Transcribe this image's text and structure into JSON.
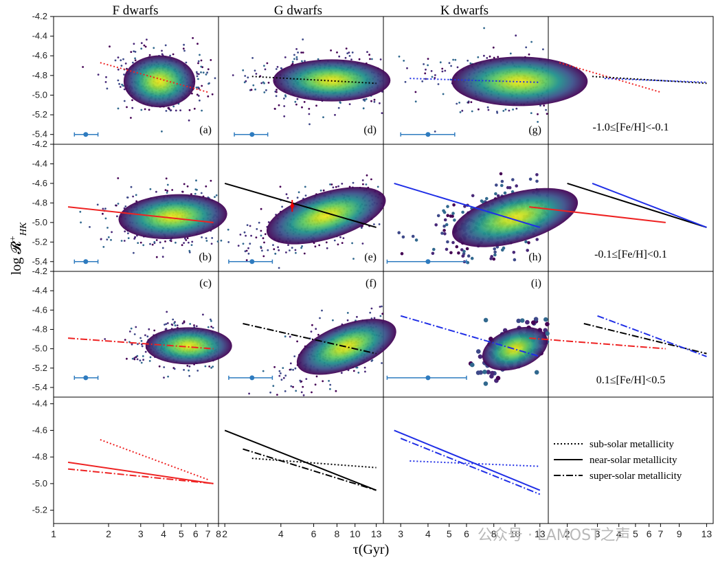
{
  "colors": {
    "F": "#ee2222",
    "G": "#000000",
    "K": "#1f2ee6",
    "errorbar": "#2e7bbf"
  },
  "column_titles": [
    "F dwarfs",
    "G dwarfs",
    "K dwarfs"
  ],
  "ylabel": "log 𝓡⁺HK",
  "xlabel": "τ(Gyr)",
  "yticks": [
    "-4.2",
    "-4.4",
    "-4.6",
    "-4.8",
    "-5.0",
    "-5.2",
    "-5.4"
  ],
  "bottom_yticks": [
    "-4.4",
    "-4.6",
    "-4.8",
    "-5.0",
    "-5.2"
  ],
  "xticks": {
    "F": [
      "1",
      "2",
      "3",
      "4",
      "5",
      "6",
      "7",
      "8"
    ],
    "G": [
      "2",
      "4",
      "6",
      "8",
      "10",
      "13"
    ],
    "K": [
      "3",
      "4",
      "5",
      "6",
      "8",
      "10",
      "13"
    ],
    "combined": [
      "2",
      "3",
      "4",
      "5",
      "6",
      "7",
      "9",
      "13"
    ]
  },
  "panel_labels": [
    "(a)",
    "(b)",
    "(c)",
    "(d)",
    "(e)",
    "(f)",
    "(g)",
    "(h)",
    "(i)"
  ],
  "metallicity_bins": [
    "-1.0≤[Fe/H]<-0.1",
    "-0.1≤[Fe/H]<0.1",
    "0.1≤[Fe/H]<0.5"
  ],
  "legend": [
    {
      "label": "sub-solar metallicity",
      "style": "dotted"
    },
    {
      "label": "near-solar metallicity",
      "style": "solid"
    },
    {
      "label": "super-solar metallicity",
      "style": "dashdot"
    }
  ],
  "watermark": "公众号 · LAMOST之声",
  "chart_data": {
    "type": "scatter",
    "ylim": [
      -5.5,
      -4.2
    ],
    "xscale": "log",
    "rows": [
      "sub-solar",
      "near-solar",
      "super-solar"
    ],
    "fits": [
      {
        "panel": "(a)",
        "type": "F",
        "metal": "sub-solar",
        "style": "dotted",
        "x": [
          1.8,
          7.0
        ],
        "y": [
          -4.67,
          -4.97
        ]
      },
      {
        "panel": "(d)",
        "type": "G",
        "metal": "sub-solar",
        "style": "dotted",
        "x": [
          2.8,
          13.0
        ],
        "y": [
          -4.81,
          -4.88
        ]
      },
      {
        "panel": "(g)",
        "type": "K",
        "metal": "sub-solar",
        "style": "dotted",
        "x": [
          3.3,
          13.0
        ],
        "y": [
          -4.83,
          -4.87
        ]
      },
      {
        "panel": "(b)",
        "type": "F",
        "metal": "near-solar",
        "style": "solid",
        "x": [
          1.2,
          7.5
        ],
        "y": [
          -4.84,
          -5.0
        ]
      },
      {
        "panel": "(e)",
        "type": "G",
        "metal": "near-solar",
        "style": "solid",
        "x": [
          2.0,
          13.0
        ],
        "y": [
          -4.6,
          -5.05
        ]
      },
      {
        "panel": "(h)",
        "type": "K",
        "metal": "near-solar",
        "style": "solid",
        "x": [
          2.8,
          13.0
        ],
        "y": [
          -4.6,
          -5.05
        ]
      },
      {
        "panel": "(c)",
        "type": "F",
        "metal": "super-solar",
        "style": "dashdot",
        "x": [
          1.2,
          7.5
        ],
        "y": [
          -4.89,
          -5.0
        ]
      },
      {
        "panel": "(f)",
        "type": "G",
        "metal": "super-solar",
        "style": "dashdot",
        "x": [
          2.5,
          13.0
        ],
        "y": [
          -4.74,
          -5.05
        ]
      },
      {
        "panel": "(i)",
        "type": "K",
        "metal": "super-solar",
        "style": "dashdot",
        "x": [
          3.0,
          13.0
        ],
        "y": [
          -4.66,
          -5.08
        ]
      }
    ],
    "errorbars": [
      {
        "panel": "(a)",
        "x": 1.5,
        "y": -5.4,
        "xerr": [
          1.3,
          1.75
        ]
      },
      {
        "panel": "(b)",
        "x": 1.5,
        "y": -5.4,
        "xerr": [
          1.3,
          1.75
        ]
      },
      {
        "panel": "(c)",
        "x": 1.5,
        "y": -5.3,
        "xerr": [
          1.3,
          1.75
        ]
      },
      {
        "panel": "(d)",
        "x": 2.8,
        "y": -5.4,
        "xerr": [
          2.25,
          3.4
        ]
      },
      {
        "panel": "(e)",
        "x": 2.8,
        "y": -5.4,
        "xerr": [
          2.1,
          3.6
        ]
      },
      {
        "panel": "(f)",
        "x": 2.8,
        "y": -5.3,
        "xerr": [
          2.1,
          3.6
        ]
      },
      {
        "panel": "(g)",
        "x": 4.0,
        "y": -5.4,
        "xerr": [
          3.0,
          5.3
        ]
      },
      {
        "panel": "(h)",
        "x": 4.0,
        "y": -5.4,
        "xerr": [
          2.6,
          6.0
        ]
      },
      {
        "panel": "(i)",
        "x": 4.0,
        "y": -5.3,
        "xerr": [
          2.6,
          6.0
        ]
      }
    ],
    "density_centers": [
      {
        "panel": "(a)",
        "x": 3.8,
        "y": -4.86
      },
      {
        "panel": "(b)",
        "x": 4.5,
        "y": -4.94
      },
      {
        "panel": "(c)",
        "x": 5.5,
        "y": -4.97
      },
      {
        "panel": "(d)",
        "x": 7.5,
        "y": -4.85
      },
      {
        "panel": "(e)",
        "x": 7.0,
        "y": -4.93
      },
      {
        "panel": "(f)",
        "x": 9.0,
        "y": -4.98
      },
      {
        "panel": "(g)",
        "x": 10.5,
        "y": -4.86
      },
      {
        "panel": "(h)",
        "x": 10.0,
        "y": -4.95
      },
      {
        "panel": "(i)",
        "x": 10.0,
        "y": -5.0
      }
    ],
    "marker": {
      "panel": "(e)",
      "x": 4.6,
      "y": -4.83,
      "yerr": 0.06
    }
  }
}
